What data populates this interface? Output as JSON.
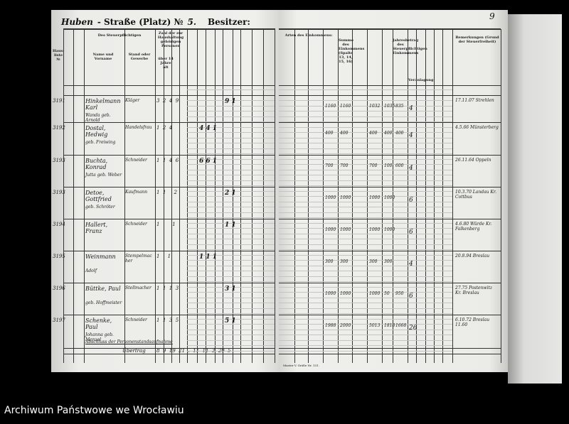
{
  "header": {
    "street_handwritten": "Huben",
    "street_label": "- Straße (Platz) №",
    "street_no": "5.",
    "owner_label": "Besitzer:",
    "page_number": "9"
  },
  "left_headers": {
    "taxpayer": "Des Steuerpflichtigen",
    "name": "Name und Vorname",
    "stand": "Stand oder Gewerbe",
    "house_no": "Haus-liste №",
    "household": "Zahl der zur Haushaltung gehörigen Personen",
    "over14": "über 14 Jahre alt"
  },
  "right_headers": {
    "income_types": "Arten des Einkommens:",
    "sum": "Summe des Einkommens (Spalte 13, 14, 15, 16)",
    "annual": "Jahresbetrag des Steuerpflichtigen Einkommens",
    "assessment": "Veranlagung",
    "remarks": "Bemerkungen (Grund der Steuerfreiheit)"
  },
  "rows": [
    {
      "no": "3191",
      "name": "Hinkelmann Karl",
      "sub": "Wanda geb. Arnold",
      "stand": "Kläger",
      "counts": "3  2  4  9",
      "marks": "9 1",
      "values": [
        "1160",
        "1160",
        "1032",
        "1035",
        "835"
      ],
      "rate": "4",
      "remark": "17.11.07 Strehlen"
    },
    {
      "no": "3192",
      "name": "Dostal, Hedwig",
      "sub": "geb. Freiwing",
      "stand": "Handelsfrau",
      "counts": "1  2  4",
      "marks": "4 4 1",
      "values": [
        "400",
        "400",
        "400",
        "400",
        "400"
      ],
      "rate": "4",
      "remark": "4.5.66 Münsterberg"
    },
    {
      "no": "3193",
      "name": "Buchta, Konrad",
      "sub": "Jutta geb. Weber",
      "stand": "Schneider",
      "counts": "1  1  4  6",
      "marks": "6 6 1",
      "values": [
        "700",
        "700",
        "700",
        "100",
        "600"
      ],
      "rate": "4",
      "remark": "26.11.64 Oppeln"
    },
    {
      "no": "3193",
      "name": "Detoe, Gottfried",
      "sub": "geb. Schröter",
      "stand": "Kaufmann",
      "counts": "1  1     2",
      "marks": "2 1",
      "values": [
        "1000",
        "1000",
        "1000",
        "1000"
      ],
      "rate": "6",
      "remark": "10.3.70 Landau Kr. Cottbus"
    },
    {
      "no": "3194",
      "name": "Hallert, Franz",
      "sub": "",
      "stand": "Schneider",
      "counts": "1        1",
      "marks": "1 1",
      "values": [
        "1000",
        "1000",
        "1000",
        "1000"
      ],
      "rate": "6",
      "remark": "4.6.80 Würde Kr. Falkenberg"
    },
    {
      "no": "3195",
      "name": "Weinmann",
      "sub": "Adolf",
      "stand": "Stempelmacher",
      "counts": "1     1",
      "marks": "1 1 1",
      "values": [
        "300",
        "300",
        "300",
        "300"
      ],
      "rate": "4",
      "remark": "20.8.94 Breslau"
    },
    {
      "no": "3196",
      "name": "Büttke, Paul",
      "sub": "geb. Hoffmeister",
      "stand": "Stellmacher",
      "counts": "1  1  1  3",
      "marks": "3 1",
      "values": [
        "1000",
        "1000",
        "1000",
        "50",
        "950"
      ],
      "rate": "6",
      "remark": "27.75 Postenwitz Kr. Breslau"
    },
    {
      "no": "3197",
      "name": "Schenke, Paul",
      "sub": "Johanna geb. Menzel",
      "stand": "Schneider",
      "counts": "1  1  3  5",
      "marks": "5 1",
      "values": [
        "1988",
        "2000",
        "5013",
        "1818",
        "1668"
      ],
      "rate": "26",
      "remark": "6.10.72 Breslau 11.60"
    }
  ],
  "sum_row": {
    "label": "Übertrag",
    "values": "8  9  19  21  .  11  11  3  20  5",
    "note": "Abschluss der Personenstandsaufnahme"
  },
  "footer": {
    "form": "Muster V. Größe Nr. 131."
  },
  "caption": "Archiwum Państwowe we Wrocławiu"
}
